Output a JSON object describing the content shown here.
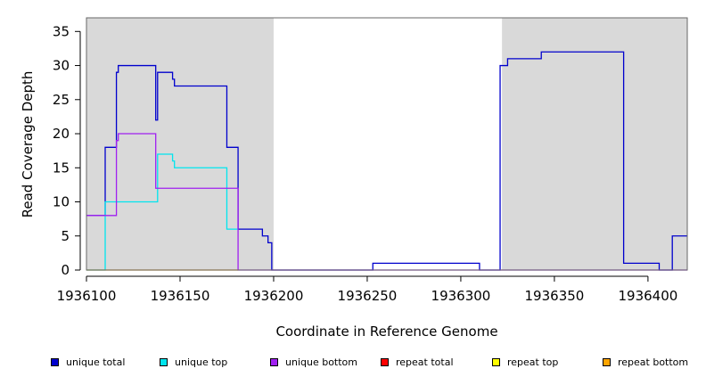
{
  "chart_data": {
    "type": "line",
    "step": true,
    "xlabel": "Coordinate in Reference Genome",
    "ylabel": "Read Coverage Depth",
    "xlim": [
      1936100,
      1936421
    ],
    "ylim": [
      0,
      37
    ],
    "x_ticks": [
      1936100,
      1936150,
      1936200,
      1936250,
      1936300,
      1936350,
      1936400
    ],
    "y_ticks": [
      0,
      5,
      10,
      15,
      20,
      25,
      30,
      35
    ],
    "shaded_regions": [
      [
        1936100,
        1936200
      ],
      [
        1936322,
        1936421
      ]
    ],
    "series": [
      {
        "name": "unique total",
        "color": "#0000cd",
        "points": [
          [
            1936100,
            8
          ],
          [
            1936110,
            18
          ],
          [
            1936116,
            29
          ],
          [
            1936117,
            30
          ],
          [
            1936137,
            22
          ],
          [
            1936138,
            29
          ],
          [
            1936146,
            28
          ],
          [
            1936147,
            27
          ],
          [
            1936175,
            18
          ],
          [
            1936181,
            6
          ],
          [
            1936194,
            5
          ],
          [
            1936197,
            4
          ],
          [
            1936199,
            0
          ],
          [
            1936253,
            1
          ],
          [
            1936310,
            0
          ],
          [
            1936321,
            30
          ],
          [
            1936325,
            31
          ],
          [
            1936343,
            32
          ],
          [
            1936387,
            1
          ],
          [
            1936406,
            0
          ],
          [
            1936413,
            5
          ],
          [
            1936421,
            5
          ]
        ]
      },
      {
        "name": "unique top",
        "color": "#00e5ee",
        "points": [
          [
            1936100,
            0
          ],
          [
            1936110,
            10
          ],
          [
            1936138,
            17
          ],
          [
            1936146,
            16
          ],
          [
            1936147,
            15
          ],
          [
            1936175,
            6
          ],
          [
            1936181,
            6
          ]
        ]
      },
      {
        "name": "unique bottom",
        "color": "#a020f0",
        "points": [
          [
            1936100,
            8
          ],
          [
            1936116,
            19
          ],
          [
            1936117,
            20
          ],
          [
            1936137,
            12
          ],
          [
            1936181,
            0
          ],
          [
            1936421,
            0
          ]
        ]
      },
      {
        "name": "repeat total",
        "color": "#ff0000",
        "points": []
      },
      {
        "name": "repeat top",
        "color": "#ffff00",
        "points": []
      },
      {
        "name": "repeat bottom",
        "color": "#ffa500",
        "points": [
          [
            1936100,
            0
          ],
          [
            1936181,
            0
          ]
        ]
      }
    ],
    "legend_position": "bottom"
  }
}
